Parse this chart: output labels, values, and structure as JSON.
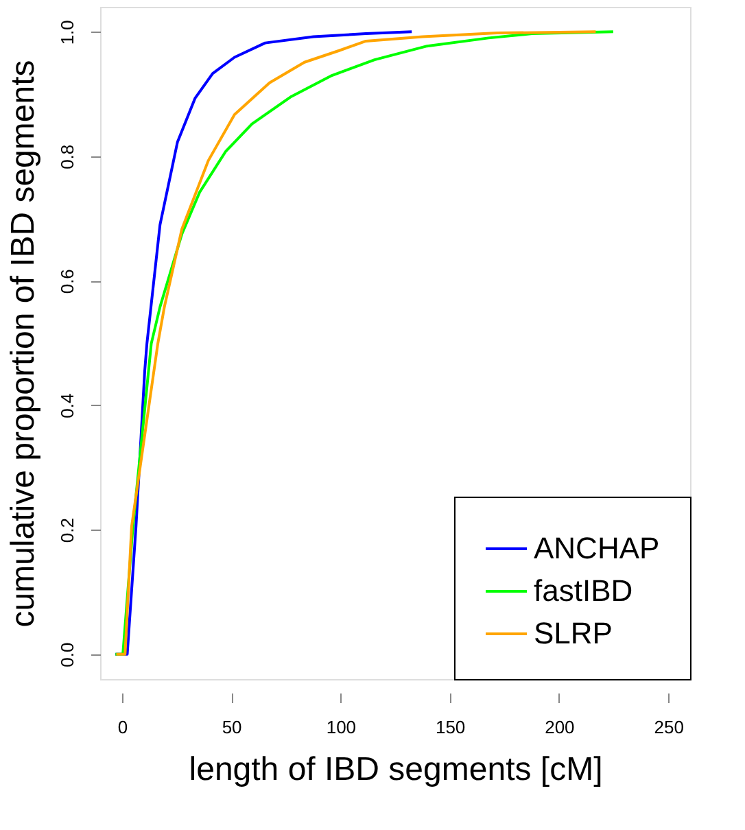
{
  "chart_data": {
    "type": "line",
    "xlabel": "length of IBD segments [cM]",
    "ylabel": "cumulative proportion of  IBD segments",
    "xlim": [
      -10,
      260
    ],
    "xticks": [
      0,
      50,
      100,
      150,
      200,
      250
    ],
    "ylim": [
      -0.04,
      1.04
    ],
    "yticks": [
      {
        "value": 0,
        "label": "0.0"
      },
      {
        "value": 0.2,
        "label": "0.2"
      },
      {
        "value": 0.4,
        "label": "0.4"
      },
      {
        "value": 0.6,
        "label": "0.6"
      },
      {
        "value": 0.8,
        "label": "0.8"
      },
      {
        "value": 1,
        "label": "1.0"
      }
    ],
    "grid": false,
    "legend": "bottom right",
    "marker": "none",
    "line_style": "solid",
    "series": [
      {
        "name": "ANCHAP",
        "color": "#0000ff",
        "x": [
          -3,
          2.4,
          6.4,
          10.4,
          11.4,
          17.4,
          25.4,
          33.4,
          41.5,
          51.5,
          65.5,
          87.6,
          111.6,
          132.6
        ],
        "values": [
          0,
          0,
          0.205,
          0.455,
          0.499,
          0.69,
          0.823,
          0.893,
          0.933,
          0.959,
          0.982,
          0.992,
          0.997,
          1.0
        ]
      },
      {
        "name": "fastIBD",
        "color": "#00ff00",
        "x": [
          -3,
          0.4,
          5,
          13.4,
          17.4,
          27.4,
          35.5,
          47.5,
          59.5,
          77.5,
          95.6,
          115.6,
          139.6,
          167.7,
          187.7,
          224.8
        ],
        "values": [
          0,
          0,
          0.205,
          0.499,
          0.558,
          0.675,
          0.742,
          0.808,
          0.852,
          0.896,
          0.929,
          0.955,
          0.977,
          0.99,
          0.997,
          1.0
        ]
      },
      {
        "name": "SLRP",
        "color": "#ffa500",
        "x": [
          -2.6,
          1.4,
          4.4,
          16.4,
          19.4,
          27.4,
          39.5,
          51.5,
          67.5,
          83.5,
          99.6,
          111.6,
          137.6,
          171.7,
          216.8
        ],
        "values": [
          0,
          0,
          0.205,
          0.499,
          0.558,
          0.683,
          0.793,
          0.867,
          0.918,
          0.951,
          0.97,
          0.985,
          0.992,
          0.998,
          1.0
        ]
      }
    ]
  }
}
